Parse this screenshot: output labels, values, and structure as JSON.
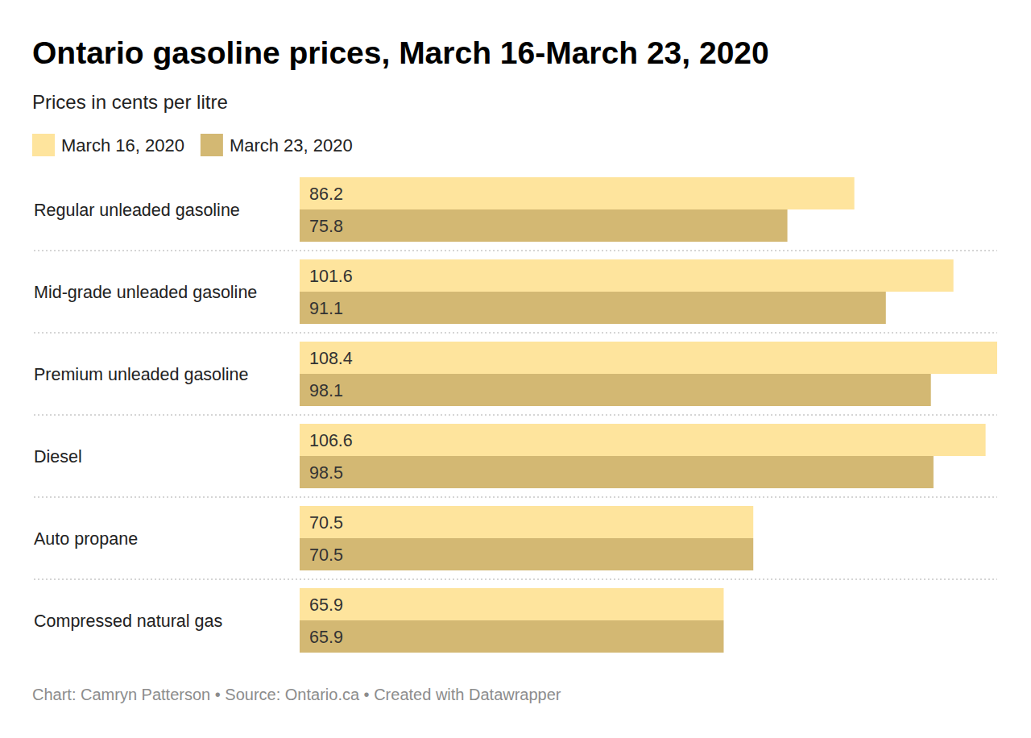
{
  "chart_data": {
    "type": "bar",
    "orientation": "horizontal",
    "title": "Ontario gasoline prices, March 16-March 23, 2020",
    "subtitle": "Prices in cents per litre",
    "caption": "Chart: Camryn Patterson • Source: Ontario.ca • Created with Datawrapper",
    "categories": [
      "Regular unleaded gasoline",
      "Mid-grade unleaded gasoline",
      "Premium unleaded gasoline",
      "Diesel",
      "Auto propane",
      "Compressed natural gas"
    ],
    "series": [
      {
        "name": "March 16, 2020",
        "color": "#fee49d",
        "values": [
          86.2,
          101.6,
          108.4,
          106.6,
          70.5,
          65.9
        ]
      },
      {
        "name": "March 23, 2020",
        "color": "#d3b873",
        "values": [
          75.8,
          91.1,
          98.1,
          98.5,
          70.5,
          65.9
        ]
      }
    ],
    "xlim": [
      0,
      108.4
    ],
    "data_labels": true,
    "tick_labels": false,
    "grid": false,
    "legend": "top-left"
  }
}
